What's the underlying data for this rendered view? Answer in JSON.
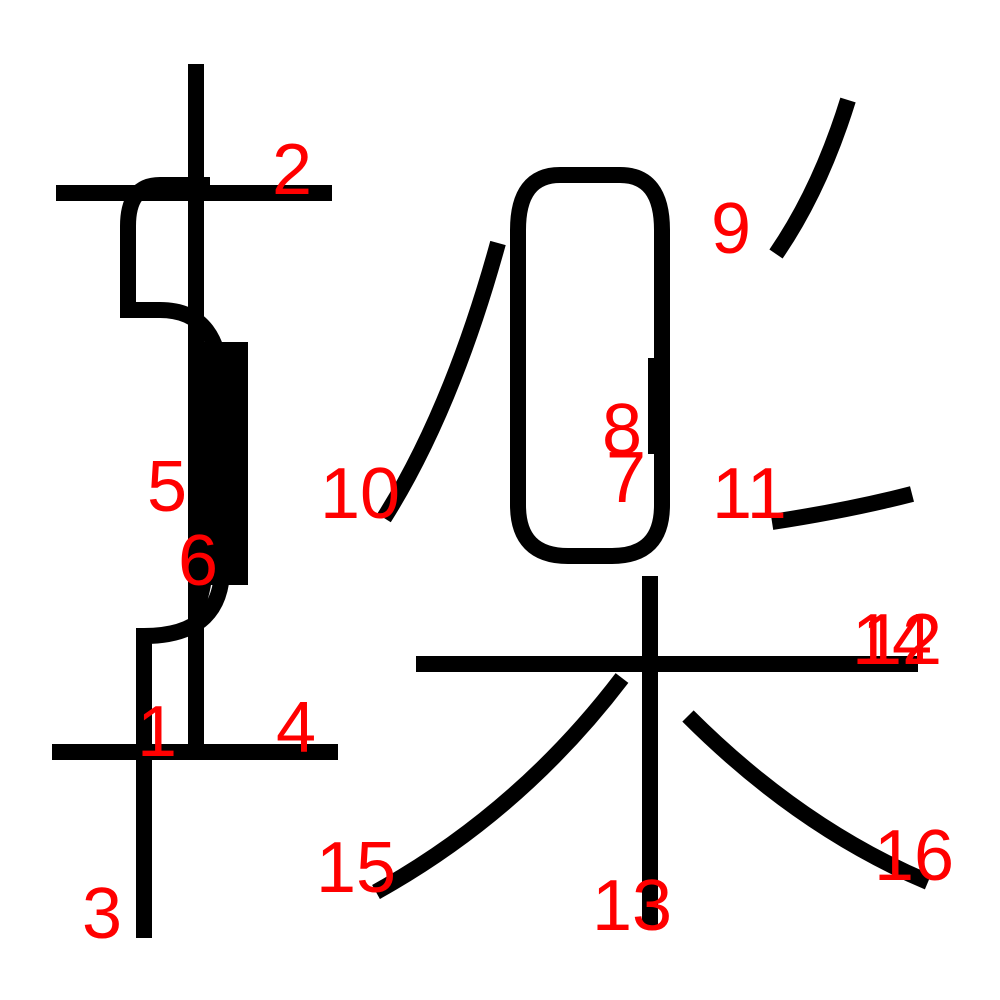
{
  "diagram": {
    "colors": {
      "stroke": "#000000",
      "label": "#ff0000",
      "background": "#ffffff"
    },
    "strokes": [
      {
        "id": 1,
        "label": "1"
      },
      {
        "id": 2,
        "label": "2"
      },
      {
        "id": 3,
        "label": "3"
      },
      {
        "id": 4,
        "label": "4"
      },
      {
        "id": 5,
        "label": "5"
      },
      {
        "id": 6,
        "label": "6"
      },
      {
        "id": 7,
        "label": "7"
      },
      {
        "id": 8,
        "label": "8"
      },
      {
        "id": 9,
        "label": "9"
      },
      {
        "id": 10,
        "label": "10"
      },
      {
        "id": 11,
        "label": "11"
      },
      {
        "id": 12,
        "label": "12"
      },
      {
        "id": 13,
        "label": "13"
      },
      {
        "id": 14,
        "label": "14"
      },
      {
        "id": 15,
        "label": "15"
      },
      {
        "id": 16,
        "label": "16"
      }
    ]
  }
}
